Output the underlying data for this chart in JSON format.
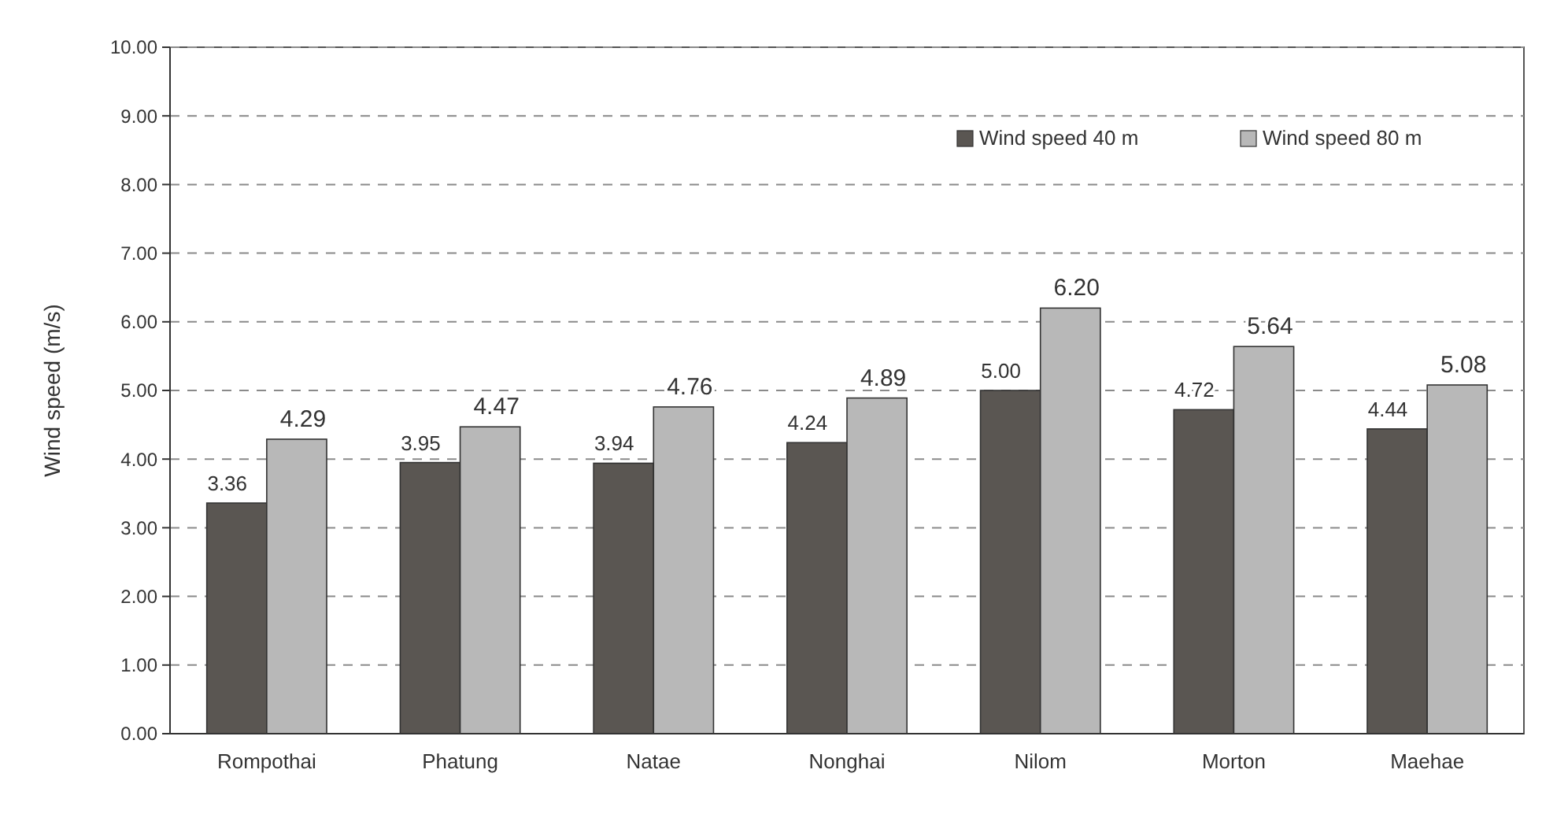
{
  "chart_data": {
    "type": "bar",
    "ylabel": "Wind speed (m/s)",
    "categories": [
      "Rompothai",
      "Phatung",
      "Natae",
      "Nonghai",
      "Nilom",
      "Morton",
      "Maehae"
    ],
    "series": [
      {
        "name": "Wind speed 40 m",
        "color": "#5a5652",
        "values": [
          3.36,
          3.95,
          3.94,
          4.24,
          5.0,
          4.72,
          4.44
        ],
        "value_labels": [
          "3.36",
          "3.95",
          "3.94",
          "4.24",
          "5.00",
          "4.72",
          "4.44"
        ]
      },
      {
        "name": "Wind speed 80 m",
        "color": "#b8b8b8",
        "values": [
          4.29,
          4.47,
          4.76,
          4.89,
          6.2,
          5.64,
          5.08
        ],
        "value_labels": [
          "4.29",
          "4.47",
          "4.76",
          "4.89",
          "6.20",
          "5.64",
          "5.08"
        ]
      }
    ],
    "ylim": [
      0,
      10
    ],
    "yticks": [
      {
        "value": 0,
        "label": "0.00"
      },
      {
        "value": 1,
        "label": "1.00"
      },
      {
        "value": 2,
        "label": "2.00"
      },
      {
        "value": 3,
        "label": "3.00"
      },
      {
        "value": 4,
        "label": "4.00"
      },
      {
        "value": 5,
        "label": "5.00"
      },
      {
        "value": 6,
        "label": "6.00"
      },
      {
        "value": 7,
        "label": "7.00"
      },
      {
        "value": 8,
        "label": "8.00"
      },
      {
        "value": 9,
        "label": "9.00"
      },
      {
        "value": 10,
        "label": "10.00"
      }
    ],
    "grid": "y",
    "line_style": "dashed",
    "legend": "top right"
  }
}
